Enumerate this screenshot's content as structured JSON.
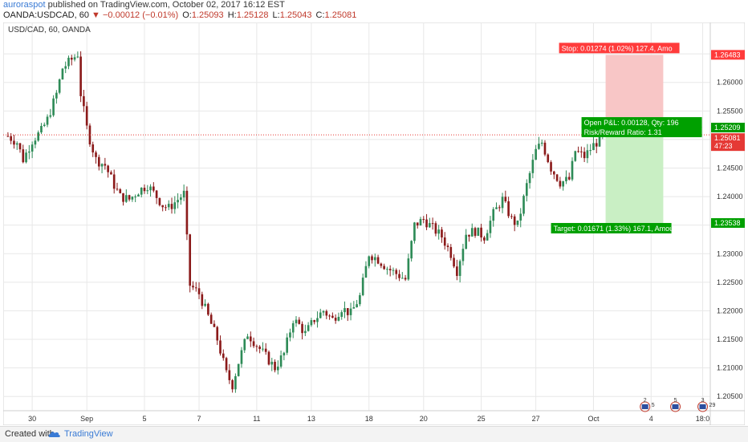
{
  "header": {
    "user": "auroraspot",
    "published": "published on TradingView.com, October 02, 2017 16:12 EST",
    "symbol_line": "OANDA:USDCAD, 60",
    "change": "▼ −0.00012 (−0.01%)",
    "ohlc": [
      {
        "label": "O:",
        "value": "1.25093"
      },
      {
        "label": "H:",
        "value": "1.25128"
      },
      {
        "label": "L:",
        "value": "1.25043"
      },
      {
        "label": "C:",
        "value": "1.25081"
      }
    ]
  },
  "chart_data": {
    "type": "candlestick",
    "title": "USD/CAD, 60, OANDA",
    "ylim": [
      1.2025,
      1.2705
    ],
    "y_ticks": [
      "1.26500",
      "1.26000",
      "1.25500",
      "1.25000",
      "1.24500",
      "1.24000",
      "1.23500",
      "1.23000",
      "1.22500",
      "1.22000",
      "1.21500",
      "1.21000",
      "1.20500"
    ],
    "x_ticks": [
      {
        "label": "30",
        "index": 8
      },
      {
        "label": "Sep",
        "index": 26
      },
      {
        "label": "5",
        "index": 45
      },
      {
        "label": "7",
        "index": 63
      },
      {
        "label": "11",
        "index": 82
      },
      {
        "label": "13",
        "index": 100
      },
      {
        "label": "18",
        "index": 119
      },
      {
        "label": "20",
        "index": 137
      },
      {
        "label": "25",
        "index": 156
      },
      {
        "label": "27",
        "index": 174
      },
      {
        "label": "Oct",
        "index": 193
      },
      {
        "label": "4",
        "index": 212
      },
      {
        "label": "18:0",
        "index": 229
      }
    ],
    "bar_count": 232,
    "last_candle_index": 197,
    "price_path": [
      [
        0,
        1.2506
      ],
      [
        3,
        1.2495
      ],
      [
        5,
        1.2465
      ],
      [
        8,
        1.2498
      ],
      [
        11,
        1.2515
      ],
      [
        13,
        1.2535
      ],
      [
        16,
        1.258
      ],
      [
        18,
        1.2625
      ],
      [
        21,
        1.264
      ],
      [
        23,
        1.265
      ],
      [
        24,
        1.258
      ],
      [
        26,
        1.252
      ],
      [
        27,
        1.25
      ],
      [
        29,
        1.2465
      ],
      [
        32,
        1.2455
      ],
      [
        35,
        1.242
      ],
      [
        37,
        1.24
      ],
      [
        40,
        1.2395
      ],
      [
        43,
        1.241
      ],
      [
        46,
        1.242
      ],
      [
        49,
        1.24
      ],
      [
        51,
        1.2385
      ],
      [
        53,
        1.238
      ],
      [
        56,
        1.2395
      ],
      [
        58,
        1.2405
      ],
      [
        60,
        1.2245
      ],
      [
        63,
        1.223
      ],
      [
        66,
        1.219
      ],
      [
        69,
        1.215
      ],
      [
        72,
        1.209
      ],
      [
        74,
        1.207
      ],
      [
        76,
        1.211
      ],
      [
        79,
        1.216
      ],
      [
        82,
        1.214
      ],
      [
        85,
        1.212
      ],
      [
        88,
        1.21
      ],
      [
        91,
        1.2125
      ],
      [
        94,
        1.2185
      ],
      [
        96,
        1.2175
      ],
      [
        98,
        1.216
      ],
      [
        101,
        1.2185
      ],
      [
        104,
        1.22
      ],
      [
        107,
        1.2185
      ],
      [
        110,
        1.2205
      ],
      [
        113,
        1.2195
      ],
      [
        116,
        1.2225
      ],
      [
        119,
        1.23
      ],
      [
        122,
        1.229
      ],
      [
        125,
        1.2275
      ],
      [
        128,
        1.2265
      ],
      [
        131,
        1.2255
      ],
      [
        134,
        1.235
      ],
      [
        137,
        1.236
      ],
      [
        140,
        1.2345
      ],
      [
        143,
        1.233
      ],
      [
        146,
        1.23
      ],
      [
        148,
        1.227
      ],
      [
        151,
        1.2335
      ],
      [
        154,
        1.234
      ],
      [
        157,
        1.233
      ],
      [
        160,
        1.237
      ],
      [
        163,
        1.2395
      ],
      [
        166,
        1.236
      ],
      [
        168,
        1.235
      ],
      [
        171,
        1.242
      ],
      [
        174,
        1.248
      ],
      [
        176,
        1.2495
      ],
      [
        179,
        1.245
      ],
      [
        182,
        1.2425
      ],
      [
        185,
        1.243
      ],
      [
        187,
        1.248
      ],
      [
        190,
        1.247
      ],
      [
        193,
        1.249
      ],
      [
        195,
        1.25
      ],
      [
        197,
        1.25081
      ]
    ],
    "current_price": {
      "value": "1.25081",
      "countdown": "47:23",
      "color": "#e53935"
    },
    "position": {
      "entry_label": "1.25209",
      "entry": 1.25209,
      "stop_label": "1.26483",
      "stop": 1.26483,
      "target_label": "1.23538",
      "target": 1.23538,
      "stop_text": "Stop: 0.01274 (1.02%) 127.4, Amo",
      "open_pl_text": "Open P&L: 0.00128, Qty: 196",
      "ratio_text": "Risk/Reward Ratio: 1.31",
      "target_text": "Target: 0.01671 (1.33%) 167.1, Amou",
      "start_index": 197,
      "end_index": 216
    },
    "colors": {
      "up": "#2e8b57",
      "down": "#8b1a1a",
      "grid": "#e8e8e8",
      "stop_fill": "#f8c6c6",
      "stop_tag": "#ff3b3b",
      "target_fill": "#c9efc4",
      "target_tag": "#00a000",
      "axis_text": "#333333"
    },
    "event_badges": [
      {
        "index": 210,
        "label": "2",
        "sub": "5"
      },
      {
        "index": 220,
        "label": "5",
        "sub": ""
      },
      {
        "index": 229,
        "label": "3",
        "sub": "29"
      }
    ],
    "grid": true
  },
  "footer": {
    "created": "Created with",
    "brand": "TradingView"
  }
}
